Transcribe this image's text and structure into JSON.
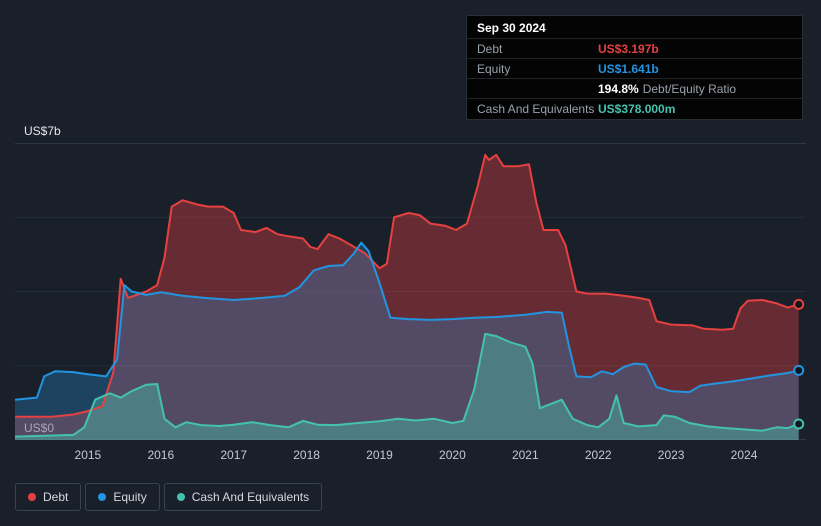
{
  "axis": {
    "y_top": "US$7b",
    "y_bottom": "US$0"
  },
  "tooltip": {
    "date": "Sep 30 2024",
    "debt_value": "US$3.197b",
    "equity_value": "US$1.641b",
    "ratio_value": "194.8%",
    "ratio_label": "Debt/Equity Ratio",
    "cash_value": "US$378.000m"
  },
  "colors": {
    "debt": "#e64141",
    "equity": "#2394df",
    "cash": "#45c2af",
    "background": "#1a202a"
  },
  "chart_data": {
    "type": "area",
    "x_unit": "year",
    "y_unit": "US$ billions",
    "xlim": [
      2014.0,
      2024.85
    ],
    "ylim": [
      0,
      7
    ],
    "x_ticks": [
      2015,
      2016,
      2017,
      2018,
      2019,
      2020,
      2021,
      2022,
      2023,
      2024
    ],
    "gridlines": [
      0,
      1.75,
      3.5,
      5.25,
      7
    ],
    "legend_position": "bottom-left",
    "series": [
      {
        "name": "Debt",
        "color": "#e64141",
        "fill_alpha": 0.38,
        "points": [
          [
            2014.0,
            0.55
          ],
          [
            2014.5,
            0.55
          ],
          [
            2014.8,
            0.6
          ],
          [
            2015.0,
            0.68
          ],
          [
            2015.2,
            0.8
          ],
          [
            2015.35,
            1.6
          ],
          [
            2015.45,
            3.8
          ],
          [
            2015.55,
            3.35
          ],
          [
            2015.8,
            3.5
          ],
          [
            2015.95,
            3.65
          ],
          [
            2016.05,
            4.3
          ],
          [
            2016.15,
            5.5
          ],
          [
            2016.3,
            5.65
          ],
          [
            2016.5,
            5.55
          ],
          [
            2016.65,
            5.5
          ],
          [
            2016.85,
            5.5
          ],
          [
            2017.0,
            5.35
          ],
          [
            2017.1,
            4.95
          ],
          [
            2017.3,
            4.9
          ],
          [
            2017.45,
            5.0
          ],
          [
            2017.6,
            4.85
          ],
          [
            2017.75,
            4.8
          ],
          [
            2017.95,
            4.75
          ],
          [
            2018.05,
            4.55
          ],
          [
            2018.15,
            4.5
          ],
          [
            2018.3,
            4.85
          ],
          [
            2018.45,
            4.75
          ],
          [
            2018.6,
            4.6
          ],
          [
            2018.8,
            4.4
          ],
          [
            2019.0,
            4.05
          ],
          [
            2019.1,
            4.15
          ],
          [
            2019.2,
            5.25
          ],
          [
            2019.4,
            5.35
          ],
          [
            2019.55,
            5.3
          ],
          [
            2019.7,
            5.1
          ],
          [
            2019.9,
            5.05
          ],
          [
            2020.05,
            4.95
          ],
          [
            2020.2,
            5.1
          ],
          [
            2020.35,
            6.0
          ],
          [
            2020.45,
            6.72
          ],
          [
            2020.5,
            6.6
          ],
          [
            2020.6,
            6.72
          ],
          [
            2020.7,
            6.45
          ],
          [
            2020.9,
            6.45
          ],
          [
            2021.05,
            6.5
          ],
          [
            2021.15,
            5.6
          ],
          [
            2021.25,
            4.95
          ],
          [
            2021.45,
            4.95
          ],
          [
            2021.55,
            4.6
          ],
          [
            2021.7,
            3.5
          ],
          [
            2021.85,
            3.45
          ],
          [
            2022.1,
            3.45
          ],
          [
            2022.35,
            3.4
          ],
          [
            2022.55,
            3.35
          ],
          [
            2022.7,
            3.3
          ],
          [
            2022.8,
            2.8
          ],
          [
            2023.0,
            2.72
          ],
          [
            2023.3,
            2.7
          ],
          [
            2023.45,
            2.62
          ],
          [
            2023.7,
            2.6
          ],
          [
            2023.85,
            2.62
          ],
          [
            2023.95,
            3.1
          ],
          [
            2024.05,
            3.28
          ],
          [
            2024.25,
            3.3
          ],
          [
            2024.45,
            3.22
          ],
          [
            2024.6,
            3.12
          ],
          [
            2024.75,
            3.197
          ]
        ]
      },
      {
        "name": "Equity",
        "color": "#2394df",
        "fill_alpha": 0.3,
        "points": [
          [
            2014.0,
            0.95
          ],
          [
            2014.3,
            1.0
          ],
          [
            2014.4,
            1.5
          ],
          [
            2014.55,
            1.62
          ],
          [
            2014.8,
            1.6
          ],
          [
            2015.0,
            1.55
          ],
          [
            2015.25,
            1.5
          ],
          [
            2015.4,
            1.9
          ],
          [
            2015.5,
            3.65
          ],
          [
            2015.6,
            3.5
          ],
          [
            2015.8,
            3.42
          ],
          [
            2016.0,
            3.48
          ],
          [
            2016.3,
            3.4
          ],
          [
            2016.6,
            3.35
          ],
          [
            2017.0,
            3.3
          ],
          [
            2017.4,
            3.35
          ],
          [
            2017.7,
            3.4
          ],
          [
            2017.9,
            3.6
          ],
          [
            2018.1,
            4.0
          ],
          [
            2018.3,
            4.1
          ],
          [
            2018.5,
            4.12
          ],
          [
            2018.65,
            4.4
          ],
          [
            2018.75,
            4.65
          ],
          [
            2018.85,
            4.45
          ],
          [
            2019.0,
            3.7
          ],
          [
            2019.15,
            2.88
          ],
          [
            2019.4,
            2.85
          ],
          [
            2019.7,
            2.83
          ],
          [
            2020.0,
            2.85
          ],
          [
            2020.3,
            2.88
          ],
          [
            2020.6,
            2.9
          ],
          [
            2021.0,
            2.95
          ],
          [
            2021.3,
            3.02
          ],
          [
            2021.5,
            3.0
          ],
          [
            2021.6,
            2.2
          ],
          [
            2021.7,
            1.5
          ],
          [
            2021.9,
            1.48
          ],
          [
            2022.05,
            1.62
          ],
          [
            2022.2,
            1.55
          ],
          [
            2022.35,
            1.72
          ],
          [
            2022.5,
            1.8
          ],
          [
            2022.65,
            1.78
          ],
          [
            2022.8,
            1.25
          ],
          [
            2023.0,
            1.15
          ],
          [
            2023.25,
            1.13
          ],
          [
            2023.4,
            1.28
          ],
          [
            2023.6,
            1.33
          ],
          [
            2023.85,
            1.38
          ],
          [
            2024.1,
            1.45
          ],
          [
            2024.35,
            1.52
          ],
          [
            2024.6,
            1.58
          ],
          [
            2024.75,
            1.641
          ]
        ]
      },
      {
        "name": "Cash And Equivalents",
        "color": "#45c2af",
        "fill_alpha": 0.42,
        "points": [
          [
            2014.0,
            0.08
          ],
          [
            2014.4,
            0.1
          ],
          [
            2014.8,
            0.12
          ],
          [
            2014.95,
            0.3
          ],
          [
            2015.1,
            0.95
          ],
          [
            2015.3,
            1.1
          ],
          [
            2015.45,
            1.0
          ],
          [
            2015.6,
            1.15
          ],
          [
            2015.8,
            1.3
          ],
          [
            2015.95,
            1.32
          ],
          [
            2016.05,
            0.5
          ],
          [
            2016.2,
            0.3
          ],
          [
            2016.35,
            0.42
          ],
          [
            2016.55,
            0.35
          ],
          [
            2016.8,
            0.33
          ],
          [
            2017.0,
            0.36
          ],
          [
            2017.25,
            0.42
          ],
          [
            2017.5,
            0.35
          ],
          [
            2017.75,
            0.3
          ],
          [
            2017.95,
            0.45
          ],
          [
            2018.15,
            0.36
          ],
          [
            2018.4,
            0.35
          ],
          [
            2018.7,
            0.4
          ],
          [
            2019.0,
            0.44
          ],
          [
            2019.25,
            0.5
          ],
          [
            2019.5,
            0.46
          ],
          [
            2019.75,
            0.5
          ],
          [
            2020.0,
            0.4
          ],
          [
            2020.15,
            0.45
          ],
          [
            2020.3,
            1.2
          ],
          [
            2020.45,
            2.5
          ],
          [
            2020.6,
            2.45
          ],
          [
            2020.8,
            2.3
          ],
          [
            2021.0,
            2.2
          ],
          [
            2021.1,
            1.8
          ],
          [
            2021.2,
            0.75
          ],
          [
            2021.35,
            0.85
          ],
          [
            2021.5,
            0.95
          ],
          [
            2021.65,
            0.5
          ],
          [
            2021.85,
            0.35
          ],
          [
            2022.0,
            0.3
          ],
          [
            2022.15,
            0.5
          ],
          [
            2022.25,
            1.05
          ],
          [
            2022.35,
            0.4
          ],
          [
            2022.55,
            0.32
          ],
          [
            2022.8,
            0.35
          ],
          [
            2022.9,
            0.58
          ],
          [
            2023.05,
            0.55
          ],
          [
            2023.25,
            0.4
          ],
          [
            2023.5,
            0.32
          ],
          [
            2023.75,
            0.28
          ],
          [
            2024.0,
            0.25
          ],
          [
            2024.25,
            0.22
          ],
          [
            2024.45,
            0.3
          ],
          [
            2024.6,
            0.28
          ],
          [
            2024.75,
            0.378
          ]
        ]
      }
    ]
  }
}
